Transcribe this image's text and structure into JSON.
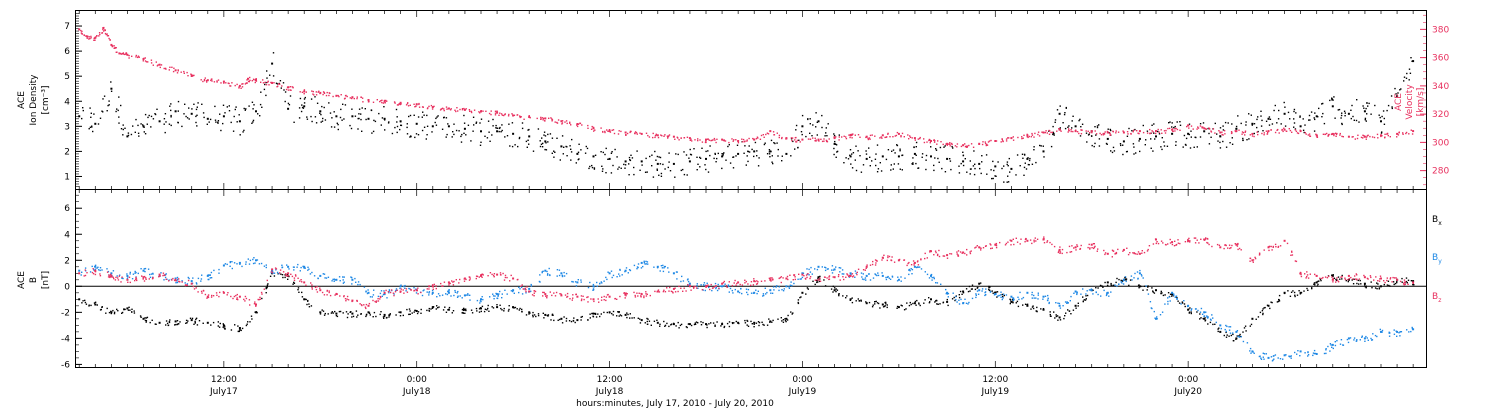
{
  "chart_data": [
    {
      "type": "scatter",
      "panel": "top",
      "x_unit": "hours since July 17, 2010 00:00",
      "xlim": [
        2.8,
        86.8
      ],
      "left_axis": {
        "label_lines": [
          "ACE",
          "Ion Density",
          "[cm⁻³]"
        ],
        "ylim": [
          0.5,
          7.6
        ],
        "ticks": [
          1,
          2,
          3,
          4,
          5,
          6,
          7
        ],
        "tick_labels": [
          "1",
          "2",
          "3",
          "4",
          "5",
          "6",
          "7"
        ],
        "color": "#000000"
      },
      "right_axis": {
        "label_lines": [
          "ACE",
          "Velocity",
          "[km/s]"
        ],
        "ylim": [
          267,
          393
        ],
        "ticks": [
          280,
          300,
          320,
          340,
          360,
          380
        ],
        "tick_labels": [
          "280",
          "300",
          "320",
          "340",
          "360",
          "380"
        ],
        "color": "#e8315f"
      },
      "series": [
        {
          "axis": "left",
          "color": "#000000",
          "x": [
            3,
            4,
            5,
            6,
            7,
            8,
            9,
            10,
            11,
            12,
            13,
            14,
            15,
            16,
            17,
            18,
            19,
            20,
            21,
            22,
            23,
            24,
            25,
            26,
            27,
            28,
            29,
            30,
            31,
            32,
            33,
            34,
            35,
            36,
            37,
            38,
            39,
            40,
            41,
            42,
            43,
            44,
            45,
            46,
            47,
            48,
            49,
            50,
            51,
            52,
            53,
            54,
            55,
            56,
            57,
            58,
            59,
            60,
            61,
            62,
            63,
            64,
            65,
            66,
            67,
            68,
            69,
            70,
            71,
            72,
            73,
            74,
            75,
            76,
            77,
            78,
            79,
            80,
            81,
            82,
            83,
            84,
            85,
            86
          ],
          "y": [
            3.4,
            3.1,
            4.5,
            2.6,
            3.0,
            3.2,
            3.6,
            3.5,
            3.3,
            3.4,
            3.2,
            3.6,
            5.5,
            3.7,
            3.8,
            3.6,
            3.4,
            3.4,
            3.3,
            3.3,
            3.2,
            3.1,
            3.0,
            3.0,
            2.9,
            2.8,
            2.8,
            2.7,
            2.6,
            2.4,
            2.2,
            1.9,
            1.8,
            1.7,
            1.6,
            1.6,
            1.5,
            1.5,
            1.6,
            1.7,
            1.8,
            1.9,
            2.0,
            2.0,
            1.9,
            3.0,
            3.2,
            2.3,
            1.8,
            1.7,
            1.8,
            1.8,
            1.9,
            1.8,
            1.7,
            1.6,
            1.5,
            1.4,
            1.3,
            1.7,
            2.0,
            3.5,
            3.0,
            2.8,
            2.5,
            2.4,
            2.5,
            2.6,
            2.7,
            2.7,
            2.8,
            2.6,
            2.9,
            3.1,
            3.3,
            3.5,
            3.0,
            3.4,
            3.8,
            3.5,
            3.6,
            3.2,
            4.2,
            5.6
          ]
        },
        {
          "axis": "right",
          "color": "#e8315f",
          "x": [
            3,
            3.5,
            4,
            4.5,
            5,
            5.5,
            6,
            7,
            8,
            9,
            10,
            11,
            12,
            13,
            13.5,
            14,
            15,
            16,
            17,
            18,
            19,
            20,
            21,
            22,
            23,
            24,
            25,
            26,
            27,
            28,
            29,
            30,
            31,
            32,
            33,
            34,
            35,
            36,
            37,
            38,
            39,
            40,
            41,
            42,
            43,
            44,
            45,
            46,
            47,
            48,
            49,
            50,
            51,
            52,
            53,
            54,
            55,
            56,
            57,
            58,
            59,
            60,
            61,
            62,
            63,
            64,
            65,
            66,
            67,
            68,
            69,
            70,
            71,
            72,
            73,
            74,
            75,
            76,
            77,
            78,
            79,
            80,
            81,
            82,
            83,
            84,
            85,
            86
          ],
          "y": [
            380,
            375,
            374,
            381,
            369,
            363,
            362,
            359,
            355,
            351,
            347,
            344,
            343,
            340,
            345,
            344,
            342,
            339,
            336,
            335,
            333,
            332,
            330,
            329,
            328,
            327,
            325,
            324,
            323,
            322,
            321,
            319,
            318,
            317,
            315,
            313,
            310,
            308,
            307,
            306,
            305,
            304,
            303,
            302,
            302,
            301,
            302,
            308,
            303,
            302,
            302,
            303,
            305,
            304,
            305,
            306,
            303,
            301,
            299,
            298,
            299,
            301,
            303,
            305,
            307,
            309,
            308,
            308,
            307,
            307,
            308,
            308,
            309,
            312,
            310,
            307,
            308,
            306,
            308,
            309,
            308,
            305,
            306,
            304,
            304,
            305,
            306,
            308
          ]
        }
      ]
    },
    {
      "type": "scatter",
      "panel": "bottom",
      "x_unit": "hours since July 17, 2010 00:00",
      "xlim": [
        2.8,
        86.8
      ],
      "y_axis": {
        "label_lines": [
          "ACE",
          "B",
          "[nT]"
        ],
        "ylim": [
          -6.2,
          7.4
        ],
        "ticks": [
          -6,
          -4,
          -2,
          0,
          2,
          4,
          6
        ],
        "tick_labels": [
          "-6",
          "-4",
          "-2",
          "0",
          "2",
          "4",
          "6"
        ]
      },
      "series": [
        {
          "name": "Bx",
          "color": "#000000",
          "x": [
            3,
            4,
            5,
            6,
            7,
            8,
            9,
            10,
            11,
            12,
            13,
            14,
            15,
            16,
            17,
            18,
            19,
            20,
            21,
            22,
            23,
            24,
            25,
            26,
            27,
            28,
            29,
            30,
            31,
            32,
            33,
            34,
            35,
            36,
            37,
            38,
            39,
            40,
            41,
            42,
            43,
            44,
            45,
            46,
            47,
            48,
            49,
            50,
            51,
            52,
            53,
            54,
            55,
            56,
            57,
            58,
            59,
            60,
            61,
            62,
            63,
            64,
            65,
            66,
            67,
            68,
            69,
            70,
            71,
            72,
            73,
            74,
            75,
            76,
            77,
            78,
            79,
            80,
            81,
            82,
            83,
            84,
            85,
            86
          ],
          "y": [
            -1.0,
            -1.4,
            -2.0,
            -1.7,
            -2.5,
            -2.8,
            -2.7,
            -2.6,
            -2.8,
            -3.0,
            -3.2,
            -2.0,
            1.0,
            0.8,
            -1.0,
            -2.0,
            -2.1,
            -2.1,
            -2.0,
            -2.2,
            -2.0,
            -1.9,
            -1.6,
            -1.8,
            -1.8,
            -1.7,
            -1.6,
            -1.6,
            -2.0,
            -2.2,
            -2.5,
            -2.6,
            -2.1,
            -2.0,
            -2.2,
            -2.6,
            -2.8,
            -2.9,
            -2.9,
            -2.9,
            -2.9,
            -2.8,
            -2.8,
            -2.7,
            -2.5,
            -0.5,
            0.7,
            -0.3,
            -1.0,
            -1.3,
            -1.4,
            -1.6,
            -1.3,
            -1.0,
            -1.2,
            -0.4,
            0.2,
            -0.5,
            -1.2,
            -1.5,
            -1.8,
            -2.4,
            -1.5,
            -0.3,
            0.3,
            0.5,
            0.0,
            -0.3,
            -0.6,
            -1.8,
            -2.5,
            -3.5,
            -4.0,
            -2.5,
            -1.5,
            -0.5,
            -0.5,
            0.3,
            0.8,
            0.5,
            0.2,
            0.0,
            0.5,
            0.4
          ]
        },
        {
          "name": "By",
          "color": "#1e88e5",
          "x": [
            3,
            4,
            5,
            6,
            7,
            8,
            9,
            10,
            11,
            12,
            13,
            14,
            15,
            16,
            17,
            18,
            19,
            20,
            21,
            22,
            23,
            24,
            25,
            26,
            27,
            28,
            29,
            30,
            31,
            32,
            33,
            34,
            35,
            36,
            37,
            38,
            39,
            40,
            41,
            42,
            43,
            44,
            45,
            46,
            47,
            48,
            49,
            50,
            51,
            52,
            53,
            54,
            55,
            56,
            57,
            58,
            59,
            60,
            61,
            62,
            63,
            64,
            65,
            66,
            67,
            68,
            69,
            70,
            71,
            72,
            73,
            74,
            75,
            76,
            77,
            78,
            79,
            80,
            81,
            82,
            83,
            84,
            85,
            86
          ],
          "y": [
            1.2,
            1.5,
            1.0,
            0.8,
            1.2,
            0.8,
            0.6,
            0.4,
            0.8,
            1.6,
            1.8,
            2.0,
            1.2,
            1.5,
            1.5,
            0.8,
            0.5,
            0.5,
            -0.5,
            -0.6,
            0.0,
            -0.3,
            -0.5,
            -0.5,
            -0.7,
            -1.0,
            -0.6,
            -0.3,
            -0.2,
            1.2,
            1.0,
            0.3,
            0.0,
            1.0,
            1.2,
            1.8,
            1.5,
            1.0,
            0.2,
            0.0,
            0.0,
            -0.4,
            -0.5,
            -0.3,
            0.0,
            1.0,
            1.5,
            1.3,
            1.0,
            0.8,
            0.8,
            0.5,
            1.5,
            0.8,
            -0.5,
            -1.3,
            -0.3,
            -0.6,
            -0.8,
            -0.5,
            -0.8,
            -1.5,
            -0.4,
            -0.3,
            -0.5,
            0.5,
            1.0,
            -2.5,
            -0.5,
            -1.5,
            -2.0,
            -3.0,
            -3.5,
            -5.0,
            -5.5,
            -5.3,
            -5.0,
            -5.2,
            -4.5,
            -4.0,
            -4.0,
            -3.5,
            -3.5,
            -3.3
          ]
        },
        {
          "name": "Bz",
          "color": "#e8315f",
          "x": [
            3,
            4,
            5,
            6,
            7,
            8,
            9,
            10,
            11,
            12,
            13,
            14,
            15,
            16,
            17,
            18,
            19,
            20,
            21,
            22,
            23,
            24,
            25,
            26,
            27,
            28,
            29,
            30,
            31,
            32,
            33,
            34,
            35,
            36,
            37,
            38,
            39,
            40,
            41,
            42,
            43,
            44,
            45,
            46,
            47,
            48,
            49,
            50,
            51,
            52,
            53,
            54,
            55,
            56,
            57,
            58,
            59,
            60,
            61,
            62,
            63,
            64,
            65,
            66,
            67,
            68,
            69,
            70,
            71,
            72,
            73,
            74,
            75,
            76,
            77,
            78,
            79,
            80,
            81,
            82,
            83,
            84,
            85,
            86
          ],
          "y": [
            1.0,
            1.2,
            0.8,
            0.5,
            0.7,
            0.9,
            0.5,
            0.2,
            -0.8,
            -0.5,
            -0.8,
            -1.4,
            1.3,
            1.0,
            0.3,
            -0.3,
            -0.6,
            -1.1,
            -1.5,
            -0.5,
            -0.4,
            -0.3,
            0.0,
            0.3,
            0.6,
            0.8,
            0.9,
            0.6,
            -0.4,
            -0.6,
            -0.7,
            -0.8,
            -1.0,
            -0.8,
            -0.6,
            -0.6,
            -0.4,
            -0.2,
            0.0,
            0.0,
            0.2,
            0.3,
            0.4,
            0.5,
            0.6,
            0.9,
            0.5,
            0.7,
            0.8,
            1.5,
            2.2,
            2.0,
            1.8,
            2.7,
            2.4,
            2.6,
            3.0,
            3.2,
            3.5,
            3.5,
            3.6,
            2.8,
            3.0,
            3.2,
            2.5,
            2.8,
            2.5,
            3.6,
            3.4,
            3.5,
            3.6,
            3.0,
            3.2,
            2.0,
            3.0,
            3.5,
            1.0,
            0.8,
            0.5,
            0.8,
            0.7,
            0.6,
            0.5,
            0.3
          ]
        }
      ],
      "legend_position": "right"
    }
  ],
  "x_axis": {
    "ticks": [
      12,
      24,
      36,
      48,
      60,
      72
    ],
    "time_labels": [
      "12:00",
      "0:00",
      "12:00",
      "0:00",
      "12:00",
      "0:00"
    ],
    "date_labels": [
      "July17",
      "July18",
      "July18",
      "July19",
      "July19",
      "July20"
    ],
    "title": "hours:minutes, July 17, 2010 - July 20, 2010"
  },
  "legend": {
    "bx": {
      "main": "B",
      "sub": "x"
    },
    "by": {
      "main": "B",
      "sub": "y"
    },
    "bz": {
      "main": "B",
      "sub": "z"
    }
  }
}
